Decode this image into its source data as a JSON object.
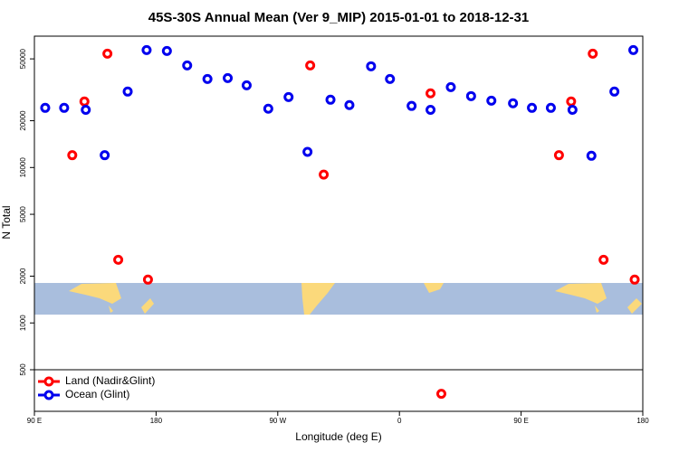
{
  "chart_data": {
    "type": "scatter",
    "title": "45S-30S Annual Mean (Ver 9_MIP)   2015-01-01 to 2018-12-31",
    "x_label": "Longitude (deg E)",
    "y_label": "N Total",
    "log_y": true,
    "legend": "lower left",
    "xlim": [
      90,
      540
    ],
    "ylim": [
      270,
      70000
    ],
    "xticks": [
      {
        "value": 90,
        "label": "90 E"
      },
      180,
      {
        "value": 270,
        "label": "90 W"
      },
      {
        "value": 360,
        "label": "0"
      },
      {
        "value": 450,
        "label": "90 E"
      },
      {
        "value": 540,
        "label": "180"
      }
    ],
    "yticks": [
      500,
      1000,
      2000,
      5000,
      10000,
      20000,
      50000
    ],
    "series": [
      {
        "name": "Land (Nadir&Glint)",
        "color": "#ff0000",
        "x": [
          118,
          127,
          144,
          152,
          174,
          294,
          304,
          383,
          391,
          478,
          487,
          503,
          511,
          534
        ],
        "values": [
          12000,
          26600,
          54000,
          2550,
          1900,
          45400,
          9000,
          30000,
          350,
          12000,
          26600,
          54000,
          2550,
          1900
        ]
      },
      {
        "name": "Ocean (Glint)",
        "color": "#0000ee",
        "x": [
          98,
          112,
          128,
          142,
          159,
          173,
          188,
          203,
          218,
          233,
          247,
          263,
          278,
          292,
          309,
          323,
          339,
          353,
          369,
          383,
          398,
          413,
          428,
          444,
          458,
          472,
          488,
          502,
          519,
          533
        ],
        "values": [
          24200,
          24200,
          23500,
          12000,
          30800,
          57000,
          56200,
          45400,
          37100,
          37600,
          33800,
          23900,
          28400,
          12600,
          27300,
          25200,
          44800,
          37100,
          24900,
          23500,
          32900,
          28800,
          26900,
          25900,
          24200,
          24200,
          23500,
          11900,
          30800,
          57000
        ]
      }
    ]
  }
}
